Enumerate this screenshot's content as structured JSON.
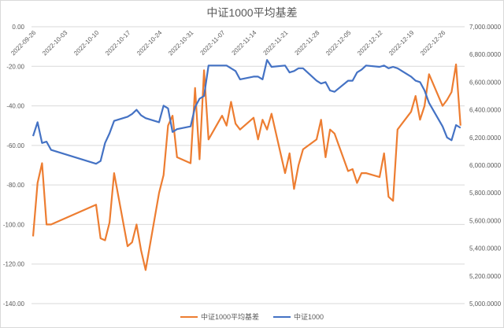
{
  "chart_data": {
    "type": "line",
    "title": "中证1000平均基差",
    "xlabel": "",
    "ylabel": "",
    "x_ticks": [
      "2022-09-26",
      "2022-10-03",
      "2022-10-10",
      "2022-10-17",
      "2022-10-24",
      "2022-10-31",
      "2022-11-07",
      "2022-11-14",
      "2022-11-21",
      "2022-11-28",
      "2022-12-05",
      "2022-12-12",
      "2022-12-19",
      "2022-12-26"
    ],
    "left_axis": {
      "ylim": [
        -140,
        0
      ],
      "ticks": [
        "0.00",
        "-20.00",
        "-40.00",
        "-60.00",
        "-80.00",
        "-100.00",
        "-120.00",
        "-140.00"
      ]
    },
    "right_axis": {
      "ylim": [
        5000,
        7000
      ],
      "ticks": [
        "7,000.0000",
        "6,800.0000",
        "6,600.0000",
        "6,400.0000",
        "6,200.0000",
        "6,000.0000",
        "5,800.0000",
        "5,600.0000",
        "5,400.0000",
        "5,200.0000",
        "5,000.0000"
      ]
    },
    "grid": true,
    "legend_position": "bottom",
    "x": [
      "2022-09-26",
      "2022-09-27",
      "2022-09-28",
      "2022-09-29",
      "2022-09-30",
      "2022-10-10",
      "2022-10-11",
      "2022-10-12",
      "2022-10-13",
      "2022-10-14",
      "2022-10-17",
      "2022-10-18",
      "2022-10-19",
      "2022-10-20",
      "2022-10-21",
      "2022-10-24",
      "2022-10-25",
      "2022-10-26",
      "2022-10-27",
      "2022-10-28",
      "2022-10-31",
      "2022-11-01",
      "2022-11-02",
      "2022-11-03",
      "2022-11-04",
      "2022-11-07",
      "2022-11-08",
      "2022-11-09",
      "2022-11-10",
      "2022-11-11",
      "2022-11-14",
      "2022-11-15",
      "2022-11-16",
      "2022-11-17",
      "2022-11-18",
      "2022-11-21",
      "2022-11-22",
      "2022-11-23",
      "2022-11-24",
      "2022-11-25",
      "2022-11-28",
      "2022-11-29",
      "2022-11-30",
      "2022-12-01",
      "2022-12-02",
      "2022-12-05",
      "2022-12-06",
      "2022-12-07",
      "2022-12-08",
      "2022-12-09",
      "2022-12-12",
      "2022-12-13",
      "2022-12-14",
      "2022-12-15",
      "2022-12-16",
      "2022-12-19",
      "2022-12-20",
      "2022-12-21",
      "2022-12-22",
      "2022-12-23",
      "2022-12-26",
      "2022-12-27",
      "2022-12-28",
      "2022-12-29",
      "2022-12-30"
    ],
    "series": [
      {
        "name": "中证1000平均基差",
        "axis": "left",
        "color": "#ED7D31",
        "values": [
          -106,
          -79,
          -69,
          -100,
          -100,
          -90,
          -107,
          -108,
          -99,
          -74,
          -111,
          -109,
          -100,
          -113,
          -123,
          -84,
          -75,
          -50,
          -45,
          -66,
          -69,
          -31,
          -67,
          -22,
          -57,
          -45,
          -50,
          -38,
          -49,
          -52,
          -46,
          -57,
          -47,
          -52,
          -44,
          -74,
          -64,
          -82,
          -70,
          -62,
          -57,
          -47,
          -66,
          -52,
          -54,
          -73,
          -72,
          -79,
          -74,
          -74,
          -76,
          -64,
          -86,
          -88,
          -52,
          -43,
          -35,
          -47,
          -40,
          -24,
          -40,
          -37,
          -33,
          -19,
          -50
        ]
      },
      {
        "name": "中证1000",
        "axis": "right",
        "color": "#4472C4",
        "values": [
          6210,
          6310,
          6160,
          6170,
          6110,
          6010,
          6030,
          6160,
          6230,
          6320,
          6350,
          6370,
          6400,
          6360,
          6340,
          6310,
          6430,
          6410,
          6240,
          6260,
          6280,
          6420,
          6480,
          6500,
          6720,
          6720,
          6720,
          6700,
          6680,
          6620,
          6640,
          6640,
          6620,
          6760,
          6710,
          6720,
          6670,
          6680,
          6700,
          6700,
          6610,
          6590,
          6600,
          6540,
          6530,
          6610,
          6610,
          6670,
          6690,
          6720,
          6710,
          6720,
          6700,
          6710,
          6700,
          6640,
          6610,
          6600,
          6540,
          6450,
          6280,
          6200,
          6180,
          6290,
          6270
        ]
      }
    ]
  },
  "legend": {
    "items": [
      {
        "label": "中证1000平均基差",
        "color": "#ED7D31"
      },
      {
        "label": "中证1000",
        "color": "#4472C4"
      }
    ]
  }
}
